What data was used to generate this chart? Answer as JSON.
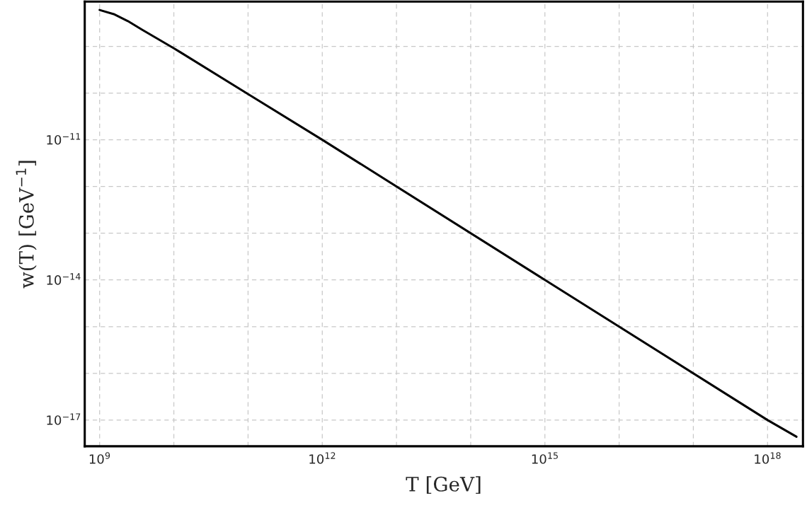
{
  "chart_data": {
    "type": "line",
    "xlabel": "T [GeV]",
    "ylabel": "w(T) [GeV$^{−1}$]",
    "log": "xy",
    "grid": true,
    "line_style": "solid",
    "marker": "none",
    "xlim": [
      630000000.0,
      3e+18
    ],
    "ylim": [
      2.75e-18,
      9.1e-09
    ],
    "xticks": [
      {
        "value": 1000000000.0,
        "label": "10$^{9}$"
      },
      {
        "value": 10000000000.0,
        "label": null
      },
      {
        "value": 100000000000.0,
        "label": null
      },
      {
        "value": 1000000000000.0,
        "label": "10$^{12}$"
      },
      {
        "value": 10000000000000.0,
        "label": null
      },
      {
        "value": 100000000000000.0,
        "label": null
      },
      {
        "value": 1000000000000000.0,
        "label": "10$^{15}$"
      },
      {
        "value": 1e+16,
        "label": null
      },
      {
        "value": 1e+17,
        "label": null
      },
      {
        "value": 1e+18,
        "label": "10$^{18}$"
      }
    ],
    "yticks": [
      {
        "value": 1e-17,
        "label": "10$^{−17}$"
      },
      {
        "value": 1e-16,
        "label": null
      },
      {
        "value": 1e-15,
        "label": null
      },
      {
        "value": 1e-14,
        "label": "10$^{−14}$"
      },
      {
        "value": 1e-13,
        "label": null
      },
      {
        "value": 1e-12,
        "label": null
      },
      {
        "value": 1e-11,
        "label": "10$^{−11}$"
      },
      {
        "value": 1e-10,
        "label": null
      },
      {
        "value": 1e-09,
        "label": null
      }
    ],
    "x": [
      1000000000.0,
      1550000000.0,
      2400000000.0,
      3700000000.0,
      10000000000.0,
      100000000000.0,
      1000000000000.0,
      1000000000000000.0,
      1e+18,
      2.45e+18
    ],
    "series": [
      {
        "color": "#000000",
        "values": [
          6e-09,
          4.9e-09,
          3.47e-09,
          2.29e-09,
          9.1e-10,
          9.5e-11,
          1e-11,
          1e-14,
          1e-17,
          4.4e-18
        ]
      }
    ]
  }
}
